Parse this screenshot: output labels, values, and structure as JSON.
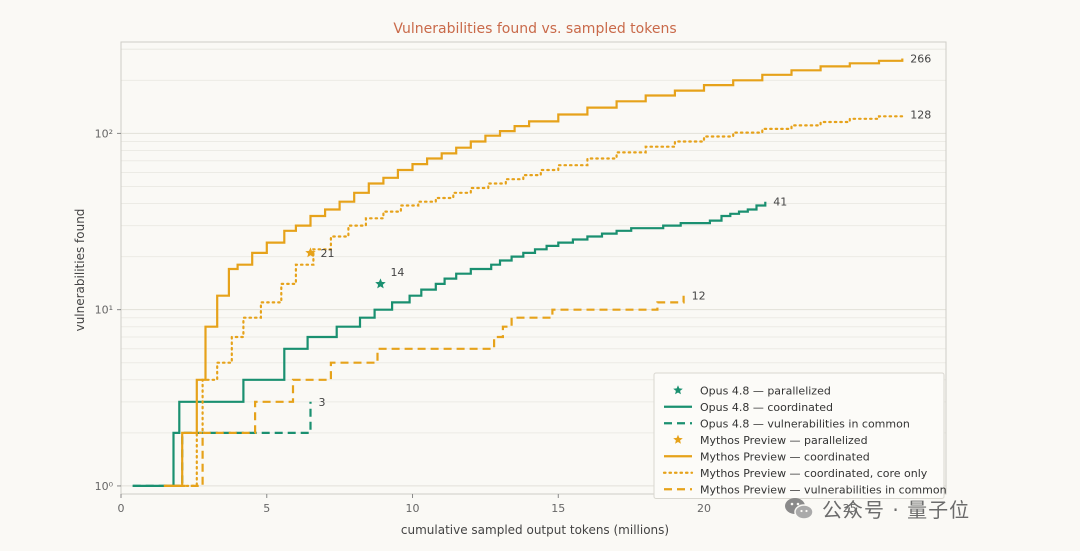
{
  "chart_data": {
    "type": "line",
    "title": "Vulnerabilities found vs. sampled tokens",
    "xlabel": "cumulative sampled output tokens (millions)",
    "ylabel": "vulnerabilities found",
    "xlim": [
      0,
      28.3
    ],
    "ylim": [
      0.9,
      330
    ],
    "yscale": "log",
    "xticks": [
      0,
      5,
      10,
      15,
      20,
      25
    ],
    "xtick_labels": [
      "0",
      "5",
      "10",
      "15",
      "20",
      "25"
    ],
    "yticks": [
      1,
      10,
      100
    ],
    "ytick_labels": [
      "10⁰",
      "10¹",
      "10²"
    ],
    "grid": true,
    "legend_position": "lower-right",
    "series": [
      {
        "name": "Opus 4.8 — parallelized",
        "kind": "marker",
        "color": "#1a9070",
        "x": [
          8.9
        ],
        "y": [
          14
        ],
        "end_label": "14"
      },
      {
        "name": "Opus 4.8 — coordinated",
        "kind": "step",
        "style": "solid",
        "color": "#1a9070",
        "x": [
          0.4,
          1.8,
          2.0,
          2.6,
          4.2,
          5.6,
          6.4,
          7.4,
          8.2,
          8.7,
          9.3,
          9.9,
          10.3,
          10.8,
          11.1,
          11.5,
          12.0,
          12.4,
          12.7,
          13.0,
          13.4,
          13.8,
          14.2,
          14.6,
          15.0,
          15.5,
          16.0,
          16.5,
          17.0,
          17.5,
          18.0,
          18.6,
          19.2,
          19.8,
          20.2,
          20.6,
          20.9,
          21.2,
          21.5,
          21.8,
          22.1
        ],
        "y": [
          1,
          2,
          3,
          3,
          4,
          6,
          7,
          8,
          9,
          10,
          11,
          12,
          13,
          14,
          15,
          16,
          17,
          17,
          18,
          19,
          20,
          21,
          22,
          23,
          24,
          25,
          26,
          27,
          28,
          29,
          29,
          30,
          31,
          31,
          32,
          34,
          35,
          36,
          37,
          39,
          41
        ],
        "end_label": "41"
      },
      {
        "name": "Opus 4.8 — vulnerabilities in common",
        "kind": "step",
        "style": "dashed",
        "color": "#1a9070",
        "x": [
          0.4,
          1.7,
          2.1,
          3.5,
          6.3,
          6.5
        ],
        "y": [
          1,
          1,
          2,
          2,
          2,
          3
        ],
        "end_label": "3"
      },
      {
        "name": "Mythos Preview — parallelized",
        "kind": "marker",
        "color": "#e6a21a",
        "x": [
          6.5
        ],
        "y": [
          21
        ],
        "end_label": "21"
      },
      {
        "name": "Mythos Preview — coordinated",
        "kind": "step",
        "style": "solid",
        "color": "#e6a21a",
        "x": [
          1.5,
          2.1,
          2.6,
          2.9,
          3.3,
          3.7,
          4.0,
          4.5,
          5.0,
          5.6,
          6.0,
          6.5,
          7.0,
          7.5,
          8.0,
          8.5,
          9.0,
          9.5,
          10.0,
          10.5,
          11.0,
          11.5,
          12.0,
          12.5,
          13.0,
          13.5,
          14.0,
          15.0,
          16.0,
          17.0,
          18.0,
          19.0,
          20.0,
          21.0,
          22.0,
          23.0,
          24.0,
          25.0,
          26.0,
          26.8
        ],
        "y": [
          1,
          2,
          4,
          8,
          12,
          17,
          18,
          21,
          24,
          28,
          30,
          34,
          37,
          41,
          46,
          52,
          56,
          62,
          67,
          72,
          77,
          83,
          90,
          97,
          103,
          110,
          117,
          128,
          140,
          152,
          164,
          175,
          188,
          200,
          215,
          228,
          240,
          250,
          258,
          266
        ],
        "end_label": "266"
      },
      {
        "name": "Mythos Preview — coordinated, core only",
        "kind": "step",
        "style": "dotted",
        "color": "#e6a21a",
        "x": [
          1.5,
          2.6,
          2.8,
          3.3,
          3.8,
          4.2,
          4.8,
          5.5,
          6.0,
          6.6,
          7.2,
          7.8,
          8.4,
          9.0,
          9.6,
          10.2,
          10.8,
          11.4,
          12.0,
          12.6,
          13.2,
          13.8,
          14.4,
          15.0,
          16.0,
          17.0,
          18.0,
          19.0,
          20.0,
          21.0,
          22.0,
          23.0,
          24.0,
          25.0,
          26.0,
          26.8
        ],
        "y": [
          1,
          2,
          4,
          5,
          7,
          9,
          11,
          14,
          18,
          22,
          26,
          30,
          33,
          36,
          39,
          41,
          43,
          46,
          49,
          52,
          55,
          58,
          62,
          66,
          72,
          78,
          84,
          90,
          96,
          101,
          106,
          111,
          116,
          121,
          125,
          128
        ],
        "end_label": "128"
      },
      {
        "name": "Mythos Preview — vulnerabilities in common",
        "kind": "step",
        "style": "dashed",
        "color": "#e6a21a",
        "x": [
          1.5,
          2.2,
          2.8,
          4.6,
          5.9,
          7.2,
          8.8,
          12.8,
          13.1,
          13.4,
          14.8,
          18.4,
          19.3
        ],
        "y": [
          1,
          1,
          2,
          3,
          4,
          5,
          6,
          7,
          8,
          9,
          10,
          11,
          12
        ],
        "end_label": "12"
      }
    ]
  },
  "watermark": {
    "text": "公众号 · 量子位",
    "icon": "wechat-icon"
  }
}
